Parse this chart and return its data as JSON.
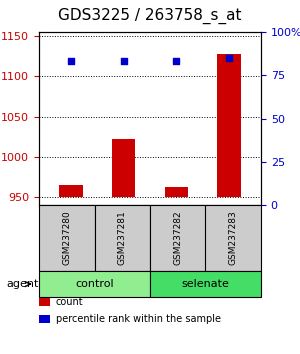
{
  "title": "GDS3225 / 263758_s_at",
  "samples": [
    "GSM237280",
    "GSM237281",
    "GSM237282",
    "GSM237283"
  ],
  "bar_values": [
    965,
    1022,
    963,
    1128
  ],
  "bar_baseline": 950,
  "percentile_values": [
    83,
    83,
    83,
    85
  ],
  "bar_color": "#cc0000",
  "percentile_color": "#0000cc",
  "ylim_left": [
    940,
    1155
  ],
  "ylim_right": [
    0,
    100
  ],
  "yticks_left": [
    950,
    1000,
    1050,
    1100,
    1150
  ],
  "yticks_right": [
    0,
    25,
    50,
    75,
    100
  ],
  "groups": [
    {
      "label": "control",
      "color": "#90ee90",
      "start": 0,
      "end": 2
    },
    {
      "label": "selenate",
      "color": "#44dd66",
      "start": 2,
      "end": 4
    }
  ],
  "legend_items": [
    {
      "label": "count",
      "color": "#cc0000"
    },
    {
      "label": "percentile rank within the sample",
      "color": "#0000cc"
    }
  ],
  "agent_label": "agent",
  "background_color": "#ffffff",
  "plot_bg_color": "#ffffff",
  "gray_box_color": "#cccccc",
  "title_fontsize": 11,
  "tick_fontsize": 8,
  "legend_fontsize": 7
}
